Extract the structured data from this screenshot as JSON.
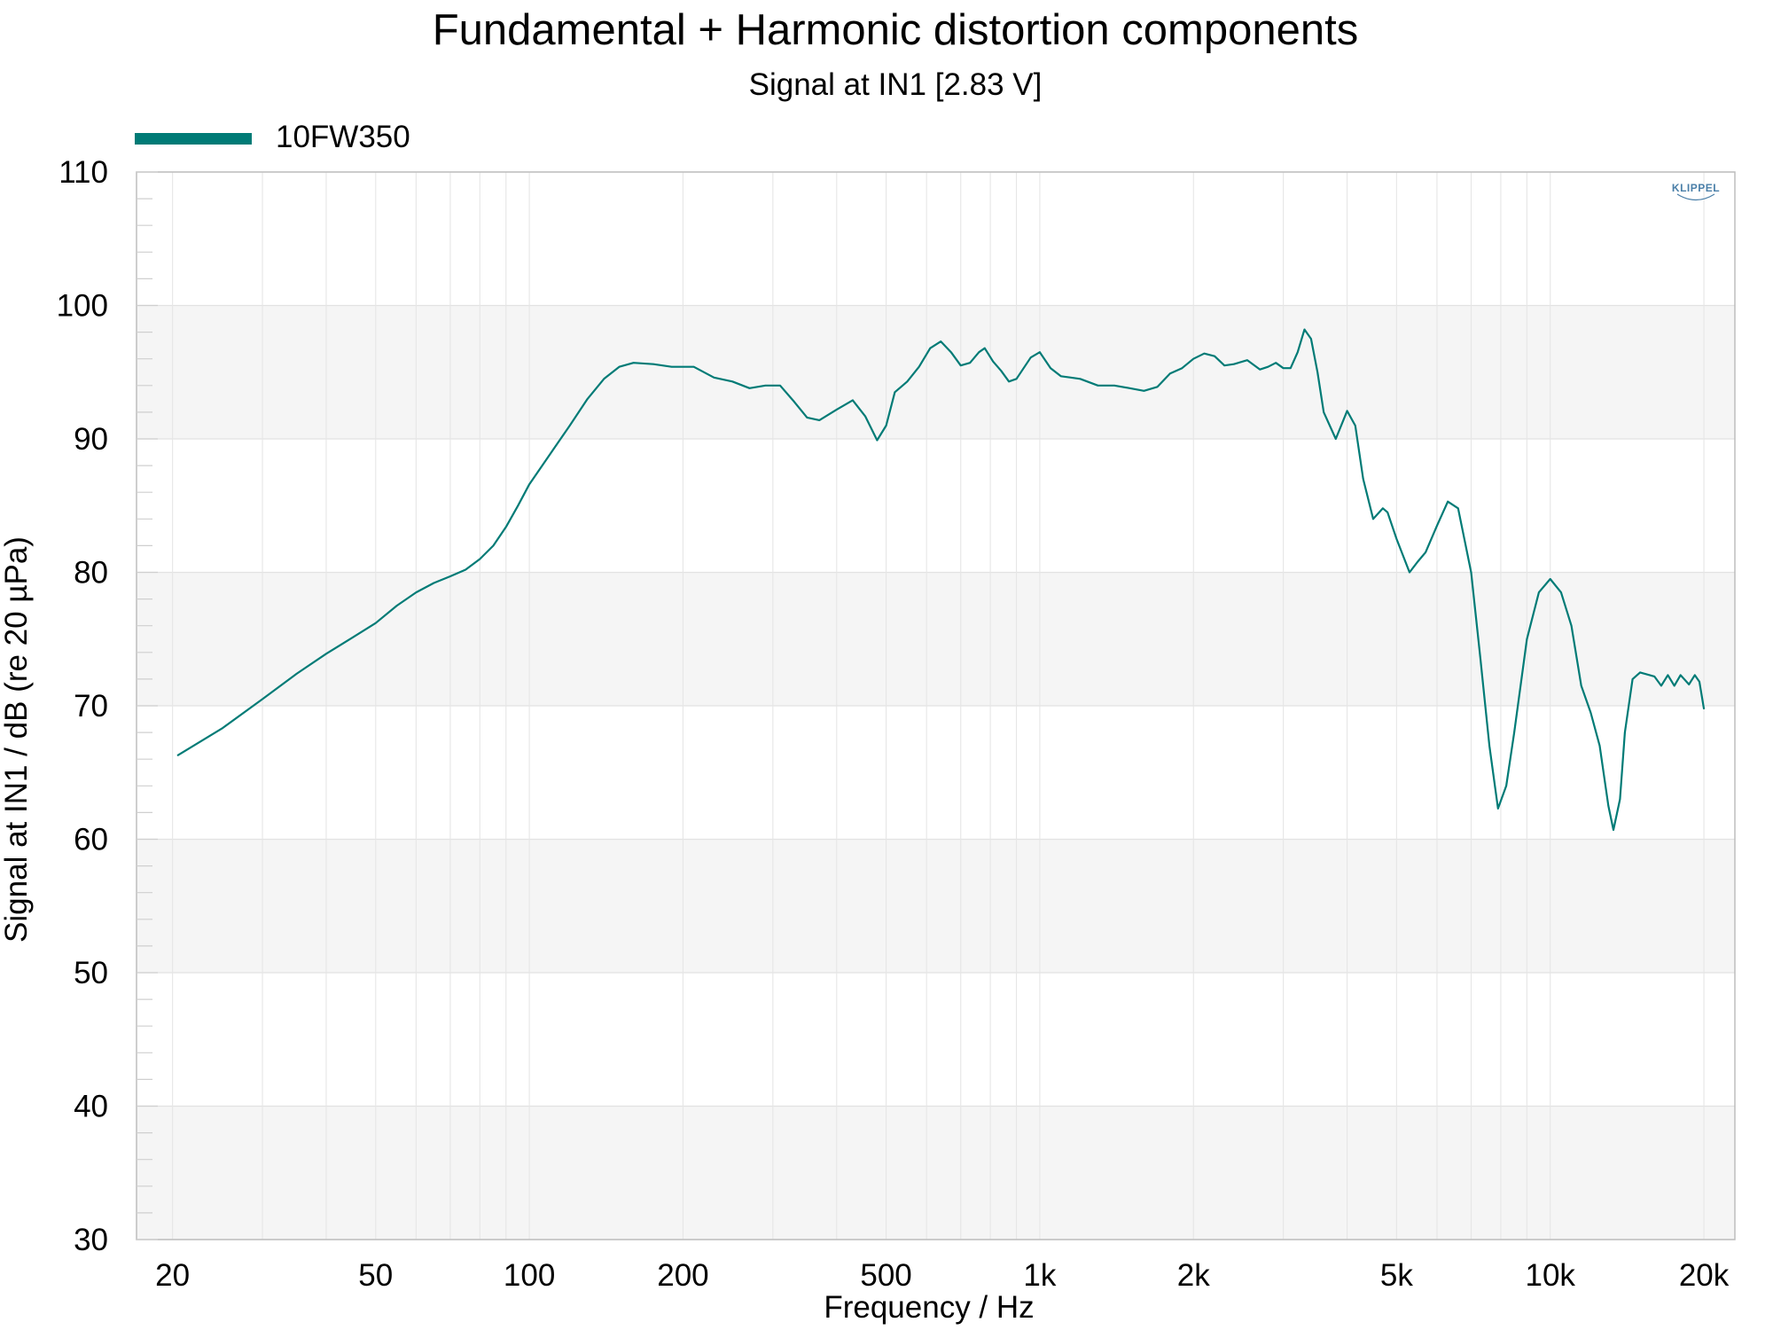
{
  "chart_data": {
    "type": "line",
    "title": "Fundamental + Harmonic distortion components",
    "subtitle": "Signal at IN1 [2.83 V]",
    "xlabel": "Frequency / Hz",
    "ylabel": "Signal at IN1 / dB (re 20 µPa)",
    "x_scale": "log",
    "xlim": [
      17,
      23000
    ],
    "ylim": [
      30,
      110
    ],
    "x_ticks": [
      {
        "value": 20,
        "label": "20"
      },
      {
        "value": 50,
        "label": "50"
      },
      {
        "value": 100,
        "label": "100"
      },
      {
        "value": 200,
        "label": "200"
      },
      {
        "value": 500,
        "label": "500"
      },
      {
        "value": 1000,
        "label": "1k"
      },
      {
        "value": 2000,
        "label": "2k"
      },
      {
        "value": 5000,
        "label": "5k"
      },
      {
        "value": 10000,
        "label": "10k"
      },
      {
        "value": 20000,
        "label": "20k"
      }
    ],
    "y_ticks": [
      30,
      40,
      50,
      60,
      70,
      80,
      90,
      100,
      110
    ],
    "grid": true,
    "legend_position": "top-left",
    "logo": "KLIPPEL",
    "series": [
      {
        "name": "10FW350",
        "color": "#007b76",
        "points": [
          [
            20.5,
            66.3
          ],
          [
            25,
            68.3
          ],
          [
            30,
            70.5
          ],
          [
            35,
            72.4
          ],
          [
            40,
            73.9
          ],
          [
            45,
            75.1
          ],
          [
            50,
            76.2
          ],
          [
            55,
            77.5
          ],
          [
            60,
            78.5
          ],
          [
            65,
            79.2
          ],
          [
            70,
            79.7
          ],
          [
            75,
            80.2
          ],
          [
            80,
            81.0
          ],
          [
            85,
            82.0
          ],
          [
            90,
            83.4
          ],
          [
            95,
            85.0
          ],
          [
            100,
            86.6
          ],
          [
            110,
            88.9
          ],
          [
            120,
            91.0
          ],
          [
            130,
            93.0
          ],
          [
            140,
            94.5
          ],
          [
            150,
            95.4
          ],
          [
            160,
            95.7
          ],
          [
            175,
            95.6
          ],
          [
            190,
            95.4
          ],
          [
            210,
            95.4
          ],
          [
            230,
            94.6
          ],
          [
            250,
            94.3
          ],
          [
            270,
            93.8
          ],
          [
            290,
            94.0
          ],
          [
            310,
            94.0
          ],
          [
            330,
            92.8
          ],
          [
            350,
            91.6
          ],
          [
            370,
            91.4
          ],
          [
            400,
            92.2
          ],
          [
            430,
            92.9
          ],
          [
            455,
            91.7
          ],
          [
            480,
            89.9
          ],
          [
            500,
            91.0
          ],
          [
            520,
            93.5
          ],
          [
            550,
            94.3
          ],
          [
            580,
            95.4
          ],
          [
            610,
            96.8
          ],
          [
            640,
            97.3
          ],
          [
            670,
            96.5
          ],
          [
            700,
            95.5
          ],
          [
            730,
            95.7
          ],
          [
            760,
            96.5
          ],
          [
            780,
            96.8
          ],
          [
            810,
            95.8
          ],
          [
            840,
            95.1
          ],
          [
            870,
            94.3
          ],
          [
            900,
            94.5
          ],
          [
            960,
            96.1
          ],
          [
            1000,
            96.5
          ],
          [
            1050,
            95.3
          ],
          [
            1100,
            94.7
          ],
          [
            1150,
            94.6
          ],
          [
            1200,
            94.5
          ],
          [
            1300,
            94.0
          ],
          [
            1400,
            94.0
          ],
          [
            1500,
            93.8
          ],
          [
            1600,
            93.6
          ],
          [
            1700,
            93.9
          ],
          [
            1800,
            94.9
          ],
          [
            1900,
            95.3
          ],
          [
            2000,
            96.0
          ],
          [
            2100,
            96.4
          ],
          [
            2200,
            96.2
          ],
          [
            2300,
            95.5
          ],
          [
            2400,
            95.6
          ],
          [
            2550,
            95.9
          ],
          [
            2700,
            95.2
          ],
          [
            2800,
            95.4
          ],
          [
            2900,
            95.7
          ],
          [
            3000,
            95.3
          ],
          [
            3100,
            95.3
          ],
          [
            3200,
            96.5
          ],
          [
            3300,
            98.2
          ],
          [
            3400,
            97.5
          ],
          [
            3500,
            95.0
          ],
          [
            3600,
            92.0
          ],
          [
            3800,
            90.0
          ],
          [
            4000,
            92.1
          ],
          [
            4150,
            91.0
          ],
          [
            4300,
            87.0
          ],
          [
            4500,
            84.0
          ],
          [
            4700,
            84.8
          ],
          [
            4800,
            84.5
          ],
          [
            5000,
            82.5
          ],
          [
            5300,
            80.0
          ],
          [
            5500,
            80.8
          ],
          [
            5700,
            81.5
          ],
          [
            6000,
            83.5
          ],
          [
            6300,
            85.3
          ],
          [
            6600,
            84.8
          ],
          [
            7000,
            80.0
          ],
          [
            7300,
            73.5
          ],
          [
            7600,
            67.0
          ],
          [
            7900,
            62.3
          ],
          [
            8200,
            64.0
          ],
          [
            8500,
            68.0
          ],
          [
            9000,
            75.0
          ],
          [
            9500,
            78.5
          ],
          [
            10000,
            79.5
          ],
          [
            10500,
            78.5
          ],
          [
            11000,
            76.0
          ],
          [
            11500,
            71.5
          ],
          [
            12000,
            69.5
          ],
          [
            12500,
            67.0
          ],
          [
            13000,
            62.5
          ],
          [
            13300,
            60.7
          ],
          [
            13700,
            63.0
          ],
          [
            14000,
            68.0
          ],
          [
            14500,
            72.0
          ],
          [
            15000,
            72.5
          ],
          [
            16000,
            72.2
          ],
          [
            16500,
            71.5
          ],
          [
            17000,
            72.3
          ],
          [
            17500,
            71.5
          ],
          [
            18000,
            72.3
          ],
          [
            18700,
            71.6
          ],
          [
            19200,
            72.3
          ],
          [
            19600,
            71.8
          ],
          [
            20000,
            69.8
          ]
        ]
      }
    ]
  }
}
